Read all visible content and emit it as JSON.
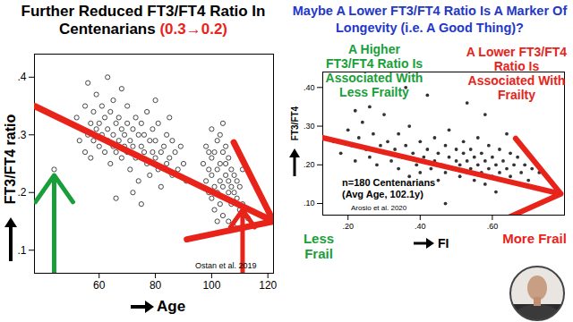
{
  "chart_data": [
    {
      "type": "scatter",
      "title": [
        {
          "text": "Further Reduced FT3/FT4 Ratio In Centenarians",
          "color": "#000000"
        },
        {
          "text": "(0.3→0.2)",
          "color": "#e8231a"
        }
      ],
      "x_label": "Age",
      "y_label": "FT3/FT4 ratio",
      "xlim": [
        37,
        122
      ],
      "ylim": [
        0.06,
        0.44
      ],
      "xticks": [
        60,
        80,
        100,
        120
      ],
      "yticks": [
        {
          "value": 0.1,
          "label": ".1"
        },
        {
          "value": 0.2,
          "label": ".2"
        },
        {
          "value": 0.3,
          "label": ".3"
        },
        {
          "value": 0.4,
          "label": ".4"
        }
      ],
      "grid": false,
      "color": "#333333",
      "marker": "open_circle",
      "x": [
        52,
        53,
        54,
        55,
        55,
        56,
        57,
        57,
        58,
        58,
        59,
        59,
        60,
        60,
        61,
        61,
        62,
        62,
        63,
        63,
        64,
        64,
        65,
        65,
        65,
        66,
        66,
        67,
        67,
        68,
        68,
        68,
        69,
        69,
        70,
        70,
        70,
        71,
        71,
        72,
        72,
        73,
        73,
        74,
        74,
        75,
        75,
        76,
        76,
        77,
        77,
        78,
        78,
        79,
        79,
        80,
        80,
        81,
        81,
        82,
        82,
        83,
        84,
        84,
        85,
        86,
        86,
        87,
        88,
        89,
        90,
        91,
        44,
        56,
        63,
        66,
        72,
        80,
        75,
        85,
        97,
        98,
        98,
        99,
        99,
        100,
        100,
        100,
        101,
        101,
        101,
        102,
        102,
        102,
        103,
        103,
        103,
        104,
        104,
        104,
        105,
        105,
        105,
        106,
        106,
        106,
        107,
        107,
        107,
        108,
        108,
        108,
        109,
        109,
        110,
        110,
        111,
        111,
        112,
        100,
        103,
        105,
        99,
        106,
        102,
        104,
        113
      ],
      "values": [
        0.33,
        0.29,
        0.31,
        0.27,
        0.35,
        0.3,
        0.32,
        0.26,
        0.34,
        0.29,
        0.31,
        0.37,
        0.28,
        0.32,
        0.3,
        0.35,
        0.27,
        0.33,
        0.29,
        0.31,
        0.25,
        0.34,
        0.3,
        0.28,
        0.36,
        0.32,
        0.27,
        0.29,
        0.33,
        0.31,
        0.26,
        0.38,
        0.28,
        0.3,
        0.32,
        0.27,
        0.35,
        0.29,
        0.24,
        0.31,
        0.28,
        0.33,
        0.26,
        0.3,
        0.22,
        0.28,
        0.32,
        0.27,
        0.3,
        0.25,
        0.34,
        0.29,
        0.23,
        0.27,
        0.31,
        0.26,
        0.29,
        0.24,
        0.32,
        0.27,
        0.21,
        0.28,
        0.25,
        0.3,
        0.26,
        0.23,
        0.29,
        0.27,
        0.24,
        0.28,
        0.25,
        0.22,
        0.24,
        0.39,
        0.4,
        0.19,
        0.2,
        0.36,
        0.18,
        0.33,
        0.25,
        0.22,
        0.28,
        0.2,
        0.24,
        0.26,
        0.19,
        0.23,
        0.21,
        0.27,
        0.17,
        0.24,
        0.2,
        0.29,
        0.22,
        0.18,
        0.25,
        0.21,
        0.16,
        0.27,
        0.23,
        0.19,
        0.25,
        0.2,
        0.22,
        0.15,
        0.24,
        0.18,
        0.21,
        0.2,
        0.23,
        0.14,
        0.19,
        0.22,
        0.17,
        0.21,
        0.18,
        0.24,
        0.16,
        0.31,
        0.3,
        0.28,
        0.27,
        0.26,
        0.15,
        0.32,
        0.155
      ],
      "trend": {
        "x": [
          37,
          122
        ],
        "y": [
          0.35,
          0.15
        ],
        "color": "#e8231a"
      },
      "arrows": [
        {
          "x": 44,
          "y": 0.23,
          "color": "#1a9e3a"
        },
        {
          "x": 111,
          "y": 0.17,
          "color": "#e8231a"
        }
      ],
      "annotations": [
        {
          "text": "Ostan et al. 2019",
          "color": "#000000"
        }
      ]
    },
    {
      "type": "scatter",
      "title": [
        {
          "text": "Maybe A Lower FT3/FT4 Ratio Is A Marker Of Longevity (i.e. A Good Thing)?",
          "color": "#2438c8"
        }
      ],
      "x_label": "FI",
      "y_label": "FT3/FT4",
      "xlim": [
        0.13,
        0.8
      ],
      "ylim": [
        0.07,
        0.44
      ],
      "xticks": [
        {
          "value": 0.2,
          "label": ".20"
        },
        {
          "value": 0.4,
          "label": ".40"
        },
        {
          "value": 0.6,
          "label": ".60"
        }
      ],
      "yticks": [
        {
          "value": 0.1,
          "label": ".10"
        },
        {
          "value": 0.2,
          "label": ".20"
        },
        {
          "value": 0.3,
          "label": ".30"
        },
        {
          "value": 0.4,
          "label": ".40"
        }
      ],
      "grid": false,
      "color": "#333333",
      "marker": "circle",
      "x": [
        0.16,
        0.18,
        0.2,
        0.21,
        0.22,
        0.23,
        0.24,
        0.25,
        0.26,
        0.27,
        0.28,
        0.29,
        0.3,
        0.3,
        0.31,
        0.32,
        0.33,
        0.34,
        0.34,
        0.35,
        0.36,
        0.37,
        0.37,
        0.38,
        0.39,
        0.4,
        0.4,
        0.41,
        0.42,
        0.42,
        0.43,
        0.44,
        0.44,
        0.45,
        0.45,
        0.46,
        0.47,
        0.47,
        0.48,
        0.48,
        0.49,
        0.5,
        0.5,
        0.51,
        0.51,
        0.52,
        0.52,
        0.53,
        0.53,
        0.54,
        0.54,
        0.55,
        0.55,
        0.56,
        0.56,
        0.57,
        0.57,
        0.58,
        0.58,
        0.59,
        0.59,
        0.6,
        0.6,
        0.61,
        0.61,
        0.62,
        0.62,
        0.63,
        0.63,
        0.64,
        0.65,
        0.65,
        0.66,
        0.67,
        0.67,
        0.68,
        0.69,
        0.7,
        0.71,
        0.72,
        0.73,
        0.36,
        0.26,
        0.58,
        0.47,
        0.53,
        0.64,
        0.22
      ],
      "values": [
        0.26,
        0.23,
        0.29,
        0.25,
        0.21,
        0.27,
        0.31,
        0.24,
        0.22,
        0.28,
        0.2,
        0.25,
        0.23,
        0.33,
        0.26,
        0.21,
        0.24,
        0.19,
        0.28,
        0.22,
        0.25,
        0.17,
        0.3,
        0.23,
        0.2,
        0.26,
        0.18,
        0.22,
        0.24,
        0.38,
        0.19,
        0.21,
        0.27,
        0.23,
        0.16,
        0.2,
        0.25,
        0.18,
        0.22,
        0.29,
        0.19,
        0.21,
        0.24,
        0.17,
        0.2,
        0.23,
        0.26,
        0.18,
        0.21,
        0.19,
        0.24,
        0.16,
        0.22,
        0.2,
        0.27,
        0.18,
        0.23,
        0.21,
        0.15,
        0.19,
        0.25,
        0.17,
        0.22,
        0.2,
        0.13,
        0.18,
        0.24,
        0.21,
        0.16,
        0.19,
        0.23,
        0.17,
        0.2,
        0.15,
        0.22,
        0.18,
        0.2,
        0.16,
        0.19,
        0.14,
        0.18,
        0.4,
        0.35,
        0.33,
        0.1,
        0.36,
        0.28,
        0.34
      ],
      "trend": {
        "x": [
          0.13,
          0.79
        ],
        "y": [
          0.27,
          0.125
        ],
        "color": "#e8231a"
      },
      "annotations": [
        {
          "text": "A Higher FT3/FT4 Ratio Is Associated With Less Frailty",
          "color": "#1a9e3a"
        },
        {
          "text": "A Lower FT3/FT4 Ratio Is Associated With Frailty",
          "color": "#e8231a"
        },
        {
          "text": "n=180 Centenarians (Avg Age, 102.1y)",
          "color": "#000000"
        },
        {
          "text": "Arosio et al. 2020",
          "color": "#000000"
        },
        {
          "text": "Less Frail",
          "color": "#1a9e3a"
        },
        {
          "text": "More Frail",
          "color": "#e8231a"
        }
      ]
    }
  ]
}
